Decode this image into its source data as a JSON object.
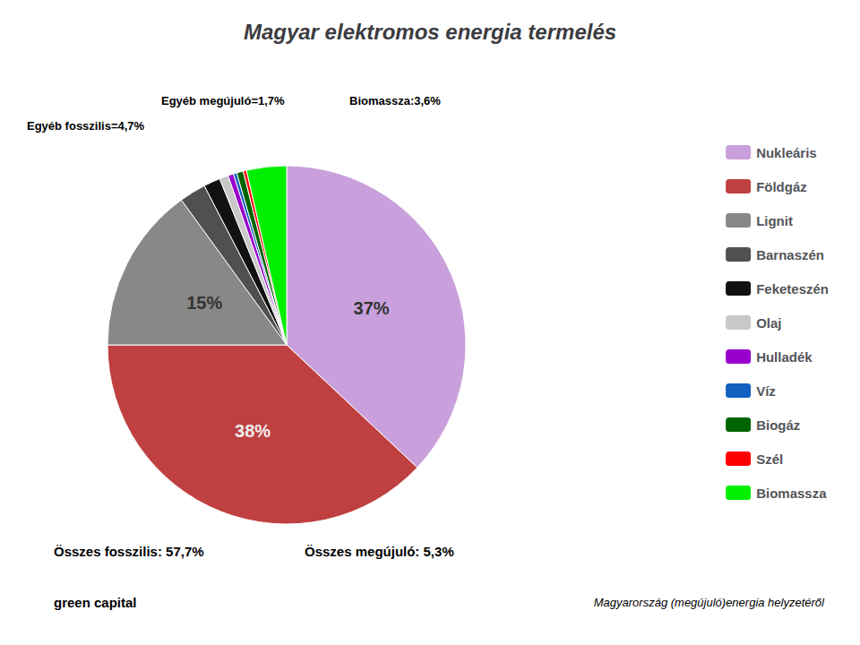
{
  "chart_data": {
    "type": "pie",
    "title": "Magyar elektromos energia termelés",
    "categories": [
      "Nukleáris",
      "Földgáz",
      "Lignit",
      "Barnaszén",
      "Feketeszén",
      "Olaj",
      "Hulladék",
      "Víz",
      "Biogáz",
      "Szél",
      "Biomassza"
    ],
    "values": [
      37,
      38,
      15,
      2.4,
      1.5,
      0.8,
      0.5,
      0.3,
      0.6,
      0.3,
      3.6
    ],
    "colors": [
      "#c9a0dc",
      "#bf4040",
      "#888888",
      "#505050",
      "#111111",
      "#c8c8c8",
      "#9900cc",
      "#1060c0",
      "#006400",
      "#ff0000",
      "#00ee00"
    ],
    "data_labels": true,
    "value_labels": [
      "37%",
      "38%",
      "15%",
      null,
      null,
      null,
      null,
      null,
      null,
      null,
      null
    ],
    "legend": "right",
    "annotations": [
      "Egyéb megújuló=1,7%",
      "Egyéb fosszilis=4,7%",
      "Biomassza:3,6%",
      "Összes fosszilis: 57,7%",
      "Összes megújuló: 5,3%",
      "green capital",
      "Magyarország (megújuló)energia helyzetéről"
    ]
  }
}
